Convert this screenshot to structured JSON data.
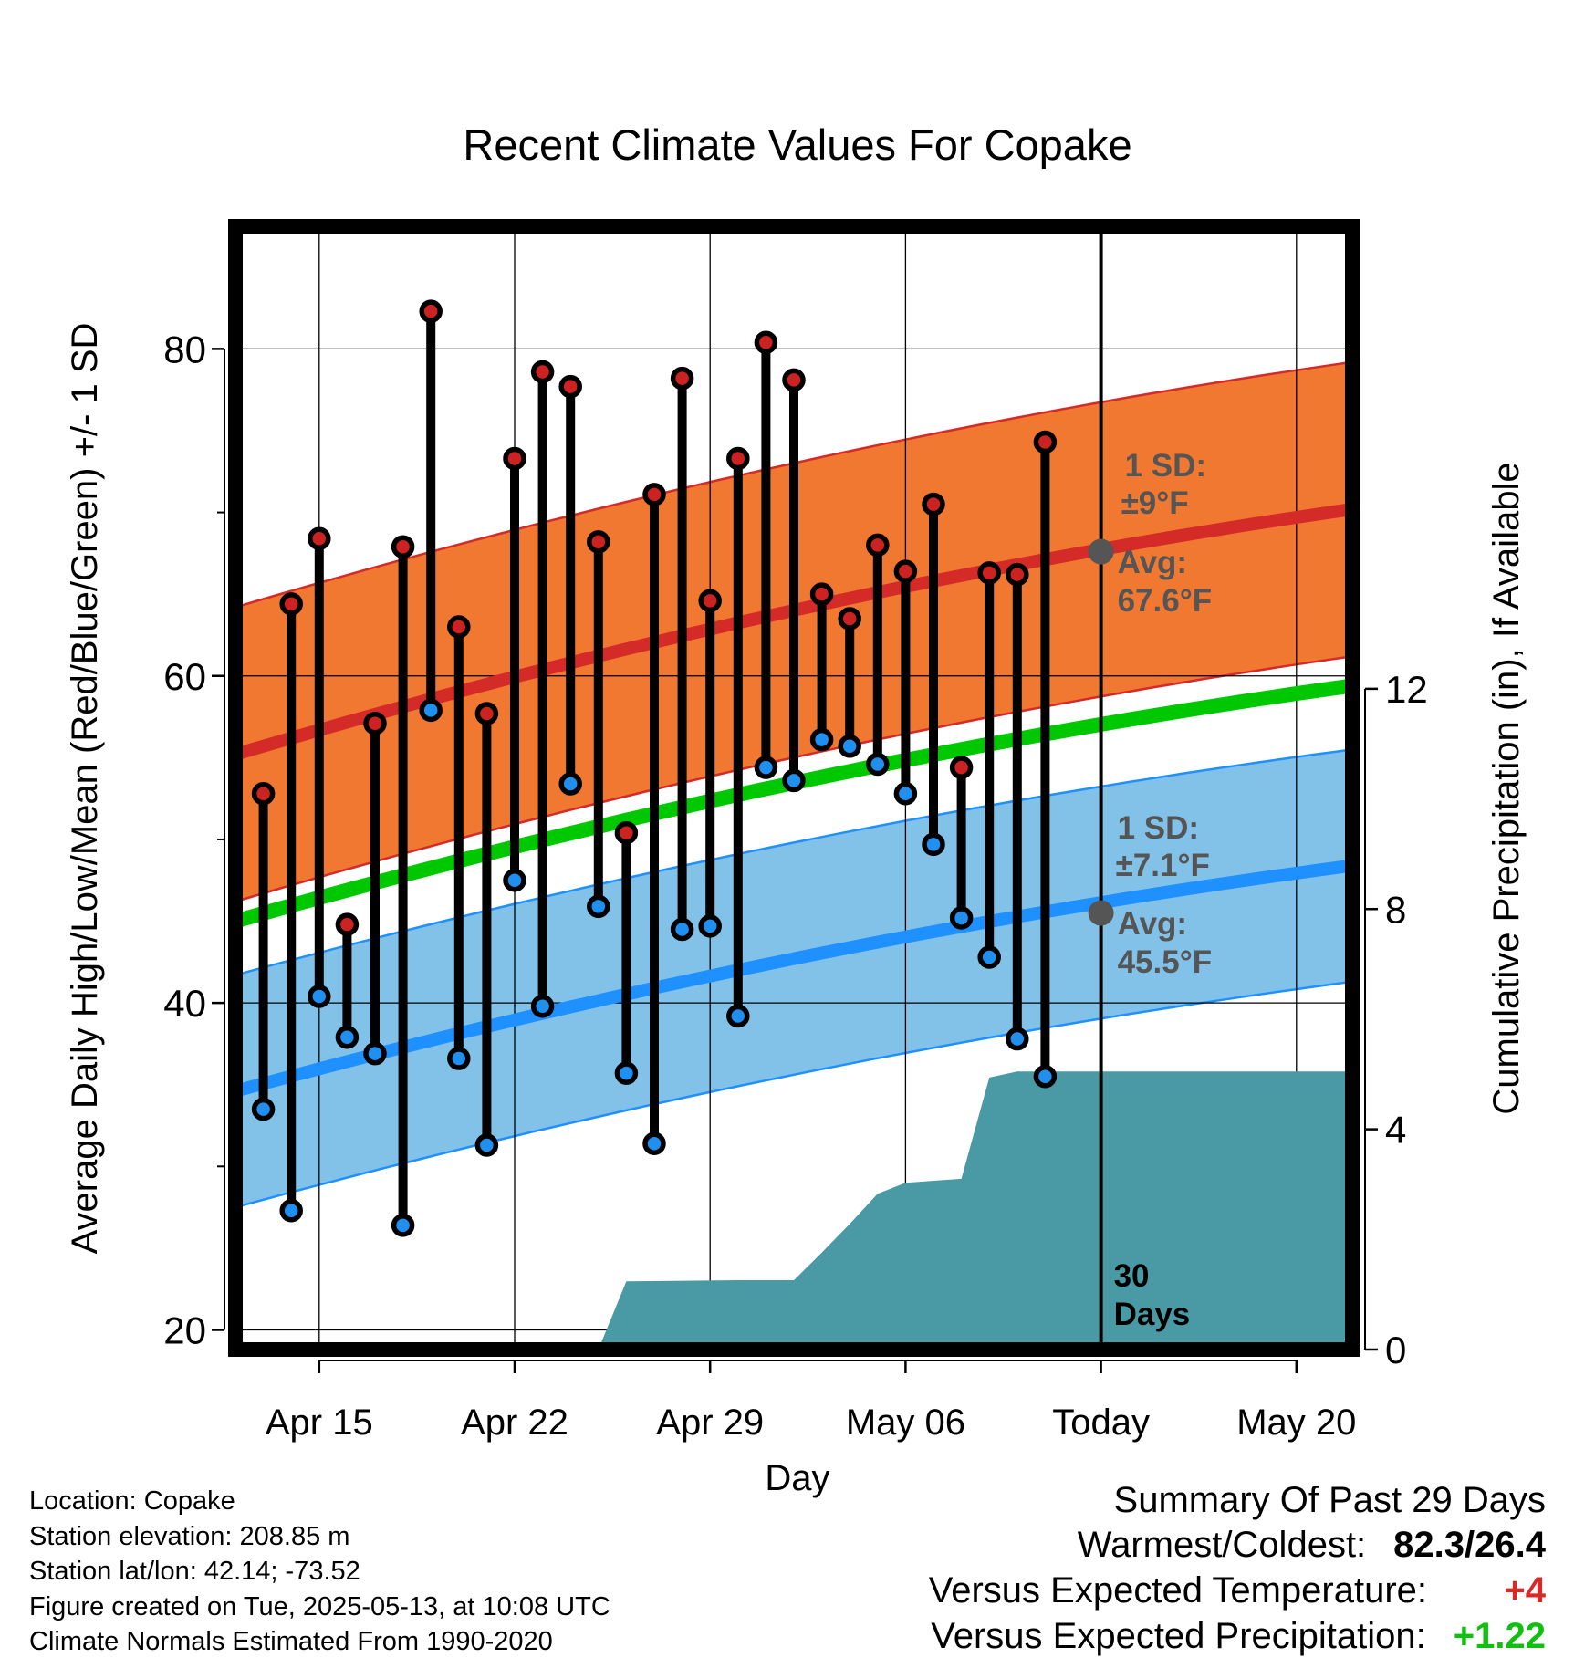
{
  "chart_data": {
    "type": "line",
    "title": "Recent Climate Values For Copake",
    "xlabel": "Day",
    "ylabel": "Average Daily High/Low/Mean (Red/Blue/Green) +/- 1 SD",
    "ylabel_right": "Cumulative Precipitation (in), If Available",
    "x_ticks": [
      "Apr 15",
      "Apr 22",
      "Apr 29",
      "May 06",
      "Today",
      "May 20"
    ],
    "x_tick_dates": [
      "2025-04-15",
      "2025-04-22",
      "2025-04-29",
      "2025-05-06",
      "2025-05-13",
      "2025-05-20"
    ],
    "xlim": [
      "2025-04-12",
      "2025-05-22"
    ],
    "ylim": [
      18.8,
      87.5
    ],
    "y_ticks": [
      20,
      40,
      60,
      80
    ],
    "ylim_right": [
      0,
      20.4
    ],
    "y_ticks_right": [
      0,
      4,
      8,
      12
    ],
    "grid": true,
    "daily_temperature": {
      "dates": [
        "2025-04-13",
        "2025-04-14",
        "2025-04-15",
        "2025-04-16",
        "2025-04-17",
        "2025-04-18",
        "2025-04-19",
        "2025-04-20",
        "2025-04-21",
        "2025-04-22",
        "2025-04-23",
        "2025-04-24",
        "2025-04-25",
        "2025-04-26",
        "2025-04-27",
        "2025-04-28",
        "2025-04-29",
        "2025-04-30",
        "2025-05-01",
        "2025-05-02",
        "2025-05-03",
        "2025-05-04",
        "2025-05-05",
        "2025-05-06",
        "2025-05-07",
        "2025-05-08",
        "2025-05-09",
        "2025-05-10",
        "2025-05-11",
        "2025-05-12"
      ],
      "high": [
        52.8,
        64.4,
        68.4,
        44.8,
        57.1,
        67.9,
        82.3,
        63.0,
        57.7,
        73.3,
        78.6,
        77.7,
        68.2,
        50.4,
        71.1,
        78.2,
        64.6,
        73.3,
        80.4,
        78.1,
        65.0,
        63.5,
        68.0,
        66.4,
        70.5,
        54.4,
        66.3,
        66.2,
        74.3,
        null
      ],
      "low": [
        33.5,
        27.3,
        40.4,
        37.9,
        36.9,
        26.4,
        57.9,
        36.6,
        31.3,
        47.5,
        39.8,
        53.4,
        45.9,
        35.7,
        31.4,
        44.5,
        44.7,
        39.2,
        54.4,
        53.6,
        56.1,
        55.7,
        54.6,
        52.8,
        49.7,
        45.2,
        42.8,
        37.8,
        35.5,
        null
      ]
    },
    "series": [
      {
        "name": "Average High",
        "values_start": 55.2,
        "values_end": 70.2,
        "sd": 9,
        "color": "#d42a28"
      },
      {
        "name": "Average Low",
        "values_start": 34.6,
        "values_end": 48.4,
        "sd": 7.1,
        "color": "#1e90ff"
      },
      {
        "name": "Average Mean",
        "values_start": 45.0,
        "values_end": 59.4,
        "color": "#00c800"
      },
      {
        "name": "Cumulative Precipitation",
        "color": "#4a9aa5",
        "dates": [
          "2025-04-12",
          "2025-04-25",
          "2025-04-26",
          "2025-04-30",
          "2025-05-02",
          "2025-05-03",
          "2025-05-04",
          "2025-05-05",
          "2025-05-06",
          "2025-05-08",
          "2025-05-09",
          "2025-05-10",
          "2025-05-13",
          "2025-05-22"
        ],
        "values": [
          0,
          0,
          1.24,
          1.26,
          1.26,
          1.76,
          2.28,
          2.83,
          3.03,
          3.1,
          4.94,
          5.05,
          5.05,
          5.05
        ]
      }
    ],
    "annotations": {
      "high_sd_label": "1 SD:",
      "high_sd_value": "±9°F",
      "high_avg_label": "Avg:",
      "high_avg_value": "67.6°F",
      "high_avg": 67.6,
      "low_sd_label": "1 SD:",
      "low_sd_value": "±7.1°F",
      "low_avg_label": "Avg:",
      "low_avg_value": "45.5°F",
      "low_avg": 45.5,
      "window_label_1": "30",
      "window_label_2": "Days"
    },
    "colors": {
      "high_band": "#f07830",
      "low_band": "#82c2e8",
      "high_dot": "#cc2222",
      "low_dot": "#2090f0",
      "annotation_text": "#555555"
    }
  },
  "meta": {
    "location": "Location: Copake",
    "elevation": "Station elevation: 208.85 m",
    "latlon": "Station lat/lon: 42.14; -73.52",
    "created": "Figure created on Tue, 2025-05-13, at 10:08 UTC",
    "normals": "Climate Normals Estimated From 1990-2020"
  },
  "summary": {
    "title": "Summary Of Past 29 Days",
    "warmest_label": "Warmest/Coldest:",
    "warmest_value": "82.3/26.4",
    "temp_label": "Versus Expected Temperature:",
    "temp_value": "+4",
    "temp_color": "#d42a28",
    "precip_label": "Versus Expected Precipitation:",
    "precip_value": "+1.22",
    "precip_color": "#10c010"
  }
}
